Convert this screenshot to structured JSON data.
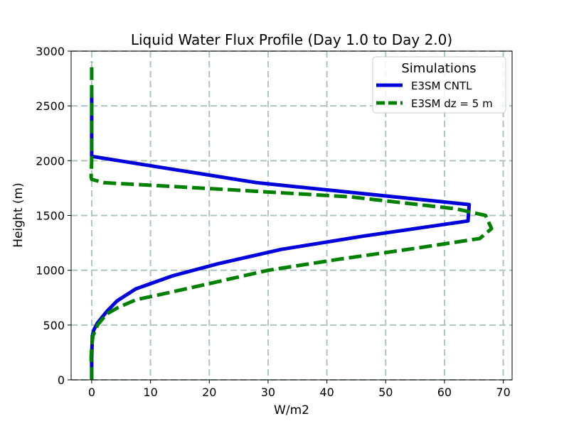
{
  "chart_data": {
    "type": "line",
    "title": "Liquid Water Flux Profile (Day 1.0 to Day 2.0)",
    "xlabel": "W/m2",
    "ylabel": "Height (m)",
    "xlim": [
      -3.5,
      71.5
    ],
    "ylim": [
      0,
      3000
    ],
    "xticks": [
      0,
      10,
      20,
      30,
      40,
      50,
      60,
      70
    ],
    "yticks": [
      0,
      500,
      1000,
      1500,
      2000,
      2500,
      3000
    ],
    "grid": true,
    "legend": {
      "title": "Simulations",
      "placement": "top-right"
    },
    "series": [
      {
        "name": "E3SM CNTL",
        "color": "#0000dd",
        "style": "solid",
        "points": [
          [
            0,
            0
          ],
          [
            0,
            200
          ],
          [
            0.1,
            400
          ],
          [
            0.4,
            460
          ],
          [
            1,
            520
          ],
          [
            2.5,
            620
          ],
          [
            4.3,
            720
          ],
          [
            7.5,
            830
          ],
          [
            13.8,
            950
          ],
          [
            21.5,
            1060
          ],
          [
            32.2,
            1190
          ],
          [
            46,
            1310
          ],
          [
            64,
            1450
          ],
          [
            64.2,
            1600
          ],
          [
            28,
            1800
          ],
          [
            0,
            2040
          ],
          [
            0,
            2300
          ],
          [
            0,
            2600
          ]
        ]
      },
      {
        "name": "E3SM dz = 5 m",
        "color": "#008000",
        "style": "dashed",
        "points": [
          [
            0,
            0
          ],
          [
            0,
            100
          ],
          [
            -0.1,
            200
          ],
          [
            0,
            300
          ],
          [
            0.2,
            400
          ],
          [
            1,
            500
          ],
          [
            2.5,
            600
          ],
          [
            4.5,
            660
          ],
          [
            7.5,
            730
          ],
          [
            13.5,
            800
          ],
          [
            21,
            890
          ],
          [
            30,
            1000
          ],
          [
            42,
            1100
          ],
          [
            55,
            1200
          ],
          [
            66,
            1290
          ],
          [
            68,
            1380
          ],
          [
            67,
            1500
          ],
          [
            62,
            1560
          ],
          [
            44,
            1670
          ],
          [
            22,
            1740
          ],
          [
            2,
            1800
          ],
          [
            0,
            1830
          ],
          [
            -0.1,
            1850
          ],
          [
            0,
            2000
          ],
          [
            0,
            2300
          ],
          [
            0,
            2600
          ],
          [
            0,
            2900
          ]
        ]
      }
    ]
  }
}
